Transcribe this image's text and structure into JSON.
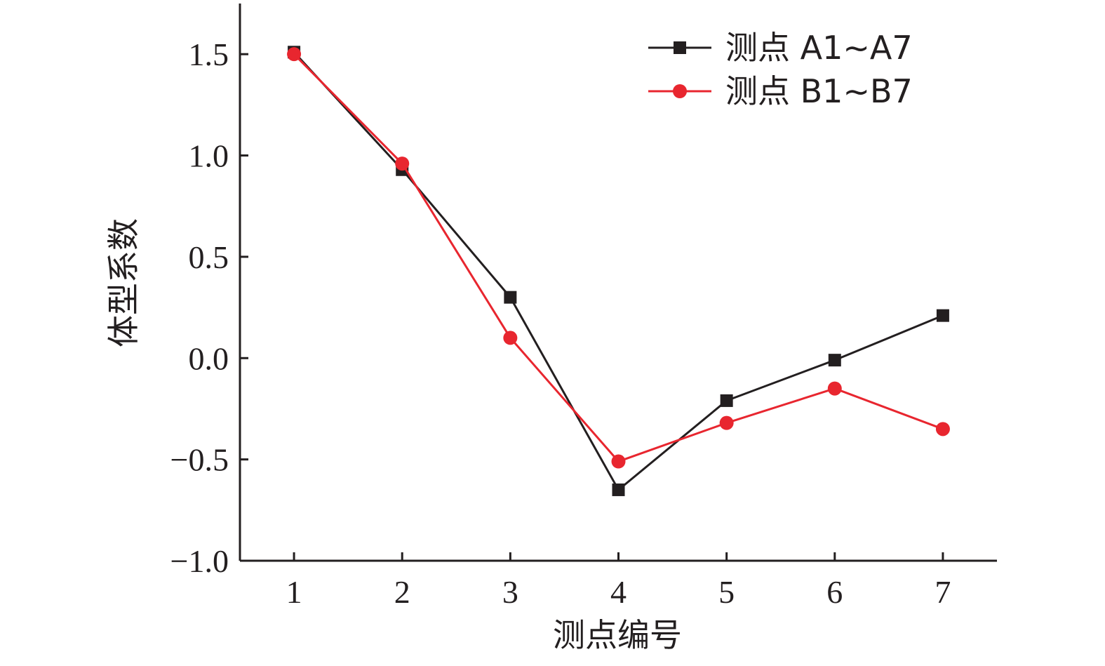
{
  "chart_data": {
    "type": "line",
    "title": "",
    "xlabel": "测点编号",
    "ylabel": "体型系数",
    "x": [
      1,
      2,
      3,
      4,
      5,
      6,
      7
    ],
    "x_tick_labels": [
      "1",
      "2",
      "3",
      "4",
      "5",
      "6",
      "7"
    ],
    "xlim": [
      0.5,
      7.5
    ],
    "ylim": [
      -1.0,
      1.75
    ],
    "y_ticks": [
      -1.0,
      -0.5,
      0.0,
      0.5,
      1.0,
      1.5
    ],
    "y_tick_labels": [
      "−1.0",
      "−0.5",
      "0.0",
      "0.5",
      "1.0",
      "1.5"
    ],
    "grid": false,
    "legend_position": "top-right",
    "series": [
      {
        "name": "测点 A1~A7",
        "marker": "square",
        "color": "#231f20",
        "values": [
          1.51,
          0.93,
          0.3,
          -0.65,
          -0.21,
          -0.01,
          0.21
        ]
      },
      {
        "name": "测点 B1~B7",
        "marker": "circle",
        "color": "#e8262f",
        "values": [
          1.5,
          0.96,
          0.1,
          -0.51,
          -0.32,
          -0.15,
          -0.35
        ]
      }
    ]
  }
}
